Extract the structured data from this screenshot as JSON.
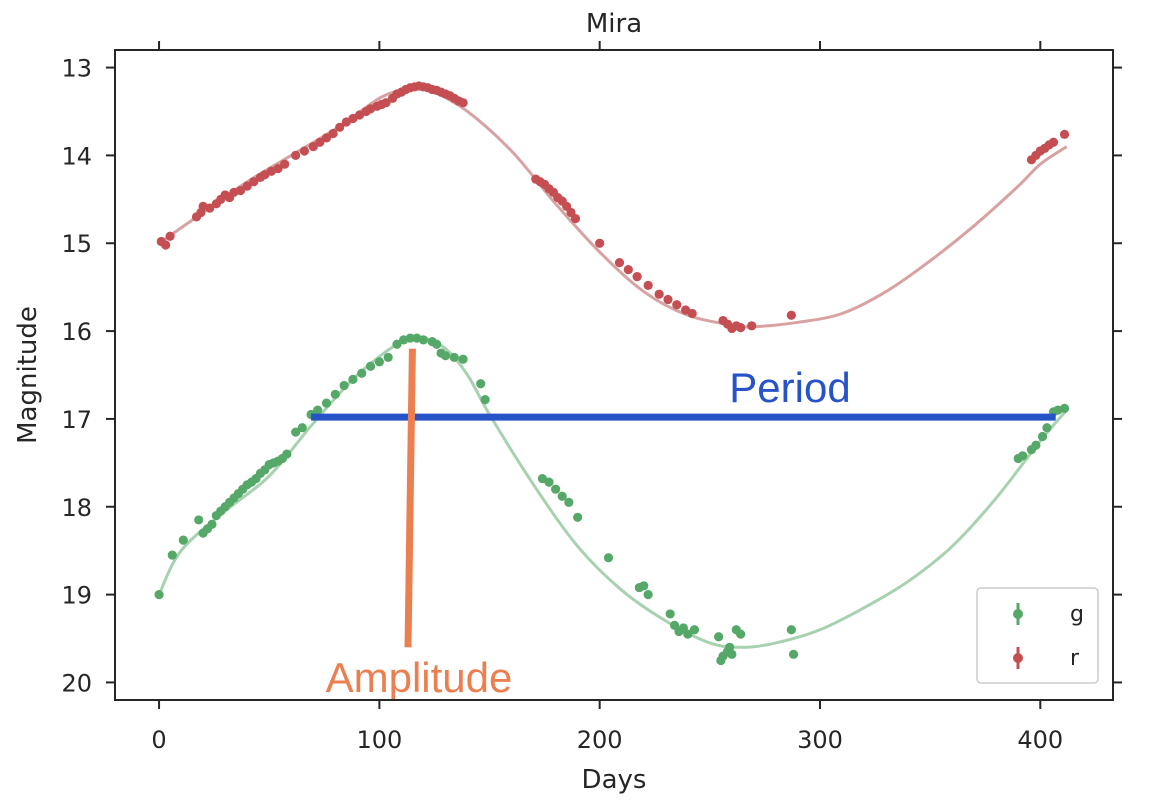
{
  "chart_data": {
    "type": "scatter",
    "title": "Mira",
    "xlabel": "Days",
    "ylabel": "Magnitude",
    "xlim": [
      -20,
      433
    ],
    "ylim": [
      12.8,
      20.2
    ],
    "y_inverted": true,
    "xticks": [
      0,
      100,
      200,
      300,
      400
    ],
    "yticks": [
      13,
      14,
      15,
      16,
      17,
      18,
      19,
      20
    ],
    "grid": false,
    "legend_position": "bottom-right",
    "annotations": {
      "period_label": "Period",
      "amplitude_label": "Amplitude",
      "period_color": "#2753c8",
      "amplitude_color": "#ec7f4f",
      "period_line": {
        "x": [
          69,
          407
        ],
        "y": [
          16.98,
          16.98
        ]
      },
      "amplitude_line": {
        "x": [
          113,
          115
        ],
        "y": [
          19.6,
          16.2
        ]
      }
    },
    "series": [
      {
        "name": "r",
        "color": "#c44e52",
        "fit_color": "#d8a2a2",
        "fit": [
          [
            0,
            15.0
          ],
          [
            20,
            14.65
          ],
          [
            40,
            14.3
          ],
          [
            60,
            14.0
          ],
          [
            80,
            13.7
          ],
          [
            100,
            13.35
          ],
          [
            110,
            13.26
          ],
          [
            117,
            13.23
          ],
          [
            125,
            13.28
          ],
          [
            140,
            13.5
          ],
          [
            160,
            13.95
          ],
          [
            180,
            14.55
          ],
          [
            200,
            15.1
          ],
          [
            220,
            15.55
          ],
          [
            240,
            15.82
          ],
          [
            260,
            15.93
          ],
          [
            270,
            15.95
          ],
          [
            290,
            15.9
          ],
          [
            310,
            15.8
          ],
          [
            330,
            15.55
          ],
          [
            350,
            15.2
          ],
          [
            370,
            14.8
          ],
          [
            390,
            14.35
          ],
          [
            400,
            14.1
          ],
          [
            412,
            13.9
          ]
        ],
        "points": [
          [
            1,
            14.98
          ],
          [
            3,
            15.02
          ],
          [
            5,
            14.92
          ],
          [
            17,
            14.7
          ],
          [
            19,
            14.65
          ],
          [
            20,
            14.58
          ],
          [
            23,
            14.6
          ],
          [
            26,
            14.55
          ],
          [
            28,
            14.5
          ],
          [
            30,
            14.45
          ],
          [
            32,
            14.48
          ],
          [
            34,
            14.42
          ],
          [
            37,
            14.4
          ],
          [
            40,
            14.35
          ],
          [
            43,
            14.3
          ],
          [
            46,
            14.25
          ],
          [
            48,
            14.22
          ],
          [
            51,
            14.18
          ],
          [
            54,
            14.15
          ],
          [
            57,
            14.1
          ],
          [
            62,
            14.0
          ],
          [
            66,
            13.95
          ],
          [
            70,
            13.9
          ],
          [
            73,
            13.85
          ],
          [
            76,
            13.8
          ],
          [
            79,
            13.75
          ],
          [
            82,
            13.68
          ],
          [
            85,
            13.62
          ],
          [
            88,
            13.58
          ],
          [
            91,
            13.54
          ],
          [
            94,
            13.5
          ],
          [
            96,
            13.47
          ],
          [
            99,
            13.44
          ],
          [
            101,
            13.42
          ],
          [
            103,
            13.4
          ],
          [
            106,
            13.35
          ],
          [
            108,
            13.3
          ],
          [
            110,
            13.28
          ],
          [
            112,
            13.25
          ],
          [
            114,
            13.23
          ],
          [
            116,
            13.22
          ],
          [
            118,
            13.21
          ],
          [
            120,
            13.22
          ],
          [
            122,
            13.23
          ],
          [
            124,
            13.25
          ],
          [
            126,
            13.26
          ],
          [
            128,
            13.28
          ],
          [
            130,
            13.3
          ],
          [
            132,
            13.32
          ],
          [
            134,
            13.35
          ],
          [
            136,
            13.38
          ],
          [
            138,
            13.4
          ],
          [
            171,
            14.27
          ],
          [
            173,
            14.3
          ],
          [
            175,
            14.33
          ],
          [
            177,
            14.38
          ],
          [
            179,
            14.42
          ],
          [
            181,
            14.48
          ],
          [
            183,
            14.52
          ],
          [
            185,
            14.58
          ],
          [
            187,
            14.65
          ],
          [
            189,
            14.72
          ],
          [
            200,
            15.0
          ],
          [
            209,
            15.22
          ],
          [
            213,
            15.3
          ],
          [
            217,
            15.38
          ],
          [
            222,
            15.48
          ],
          [
            227,
            15.58
          ],
          [
            231,
            15.64
          ],
          [
            235,
            15.7
          ],
          [
            239,
            15.76
          ],
          [
            242,
            15.8
          ],
          [
            256,
            15.88
          ],
          [
            258,
            15.92
          ],
          [
            260,
            15.97
          ],
          [
            262,
            15.94
          ],
          [
            264,
            15.96
          ],
          [
            269,
            15.94
          ],
          [
            287,
            15.82
          ],
          [
            396,
            14.05
          ],
          [
            398,
            14.0
          ],
          [
            400,
            13.95
          ],
          [
            402,
            13.92
          ],
          [
            404,
            13.88
          ],
          [
            406,
            13.85
          ],
          [
            411,
            13.76
          ]
        ]
      },
      {
        "name": "g",
        "color": "#55a868",
        "fit_color": "#a8d1b0",
        "fit": [
          [
            0,
            19.0
          ],
          [
            10,
            18.5
          ],
          [
            30,
            18.05
          ],
          [
            50,
            17.65
          ],
          [
            70,
            17.05
          ],
          [
            90,
            16.5
          ],
          [
            110,
            16.12
          ],
          [
            120,
            16.08
          ],
          [
            130,
            16.2
          ],
          [
            140,
            16.5
          ],
          [
            150,
            16.95
          ],
          [
            170,
            17.75
          ],
          [
            190,
            18.45
          ],
          [
            210,
            18.95
          ],
          [
            230,
            19.3
          ],
          [
            250,
            19.55
          ],
          [
            265,
            19.6
          ],
          [
            280,
            19.55
          ],
          [
            300,
            19.4
          ],
          [
            320,
            19.15
          ],
          [
            340,
            18.85
          ],
          [
            360,
            18.45
          ],
          [
            380,
            17.9
          ],
          [
            400,
            17.25
          ],
          [
            412,
            16.9
          ]
        ],
        "points": [
          [
            0,
            19.0
          ],
          [
            6,
            18.55
          ],
          [
            11,
            18.38
          ],
          [
            18,
            18.15
          ],
          [
            20,
            18.3
          ],
          [
            22,
            18.25
          ],
          [
            24,
            18.2
          ],
          [
            26,
            18.1
          ],
          [
            28,
            18.05
          ],
          [
            30,
            18.0
          ],
          [
            32,
            17.95
          ],
          [
            34,
            17.9
          ],
          [
            36,
            17.85
          ],
          [
            38,
            17.8
          ],
          [
            40,
            17.75
          ],
          [
            42,
            17.72
          ],
          [
            44,
            17.68
          ],
          [
            46,
            17.62
          ],
          [
            48,
            17.58
          ],
          [
            50,
            17.52
          ],
          [
            52,
            17.5
          ],
          [
            54,
            17.48
          ],
          [
            56,
            17.45
          ],
          [
            58,
            17.4
          ],
          [
            62,
            17.15
          ],
          [
            65,
            17.1
          ],
          [
            69,
            16.95
          ],
          [
            72,
            16.9
          ],
          [
            76,
            16.82
          ],
          [
            80,
            16.72
          ],
          [
            84,
            16.62
          ],
          [
            88,
            16.55
          ],
          [
            92,
            16.48
          ],
          [
            96,
            16.4
          ],
          [
            100,
            16.35
          ],
          [
            104,
            16.3
          ],
          [
            108,
            16.15
          ],
          [
            111,
            16.1
          ],
          [
            114,
            16.08
          ],
          [
            117,
            16.08
          ],
          [
            120,
            16.1
          ],
          [
            124,
            16.12
          ],
          [
            126,
            16.15
          ],
          [
            128,
            16.25
          ],
          [
            130,
            16.28
          ],
          [
            134,
            16.3
          ],
          [
            138,
            16.32
          ],
          [
            146,
            16.6
          ],
          [
            148,
            16.78
          ],
          [
            174,
            17.68
          ],
          [
            177,
            17.72
          ],
          [
            180,
            17.8
          ],
          [
            183,
            17.88
          ],
          [
            186,
            17.95
          ],
          [
            190,
            18.12
          ],
          [
            204,
            18.58
          ],
          [
            218,
            18.92
          ],
          [
            220,
            18.9
          ],
          [
            222,
            19.0
          ],
          [
            232,
            19.22
          ],
          [
            234,
            19.35
          ],
          [
            236,
            19.42
          ],
          [
            238,
            19.38
          ],
          [
            240,
            19.45
          ],
          [
            243,
            19.4
          ],
          [
            254,
            19.48
          ],
          [
            255,
            19.75
          ],
          [
            256,
            19.7
          ],
          [
            258,
            19.65
          ],
          [
            259,
            19.6
          ],
          [
            260,
            19.68
          ],
          [
            262,
            19.4
          ],
          [
            264,
            19.45
          ],
          [
            287,
            19.4
          ],
          [
            288,
            19.68
          ],
          [
            390,
            17.45
          ],
          [
            392,
            17.42
          ],
          [
            396,
            17.35
          ],
          [
            398,
            17.3
          ],
          [
            401,
            17.2
          ],
          [
            403,
            17.1
          ],
          [
            406,
            16.92
          ],
          [
            408,
            16.9
          ],
          [
            411,
            16.88
          ]
        ]
      }
    ]
  }
}
